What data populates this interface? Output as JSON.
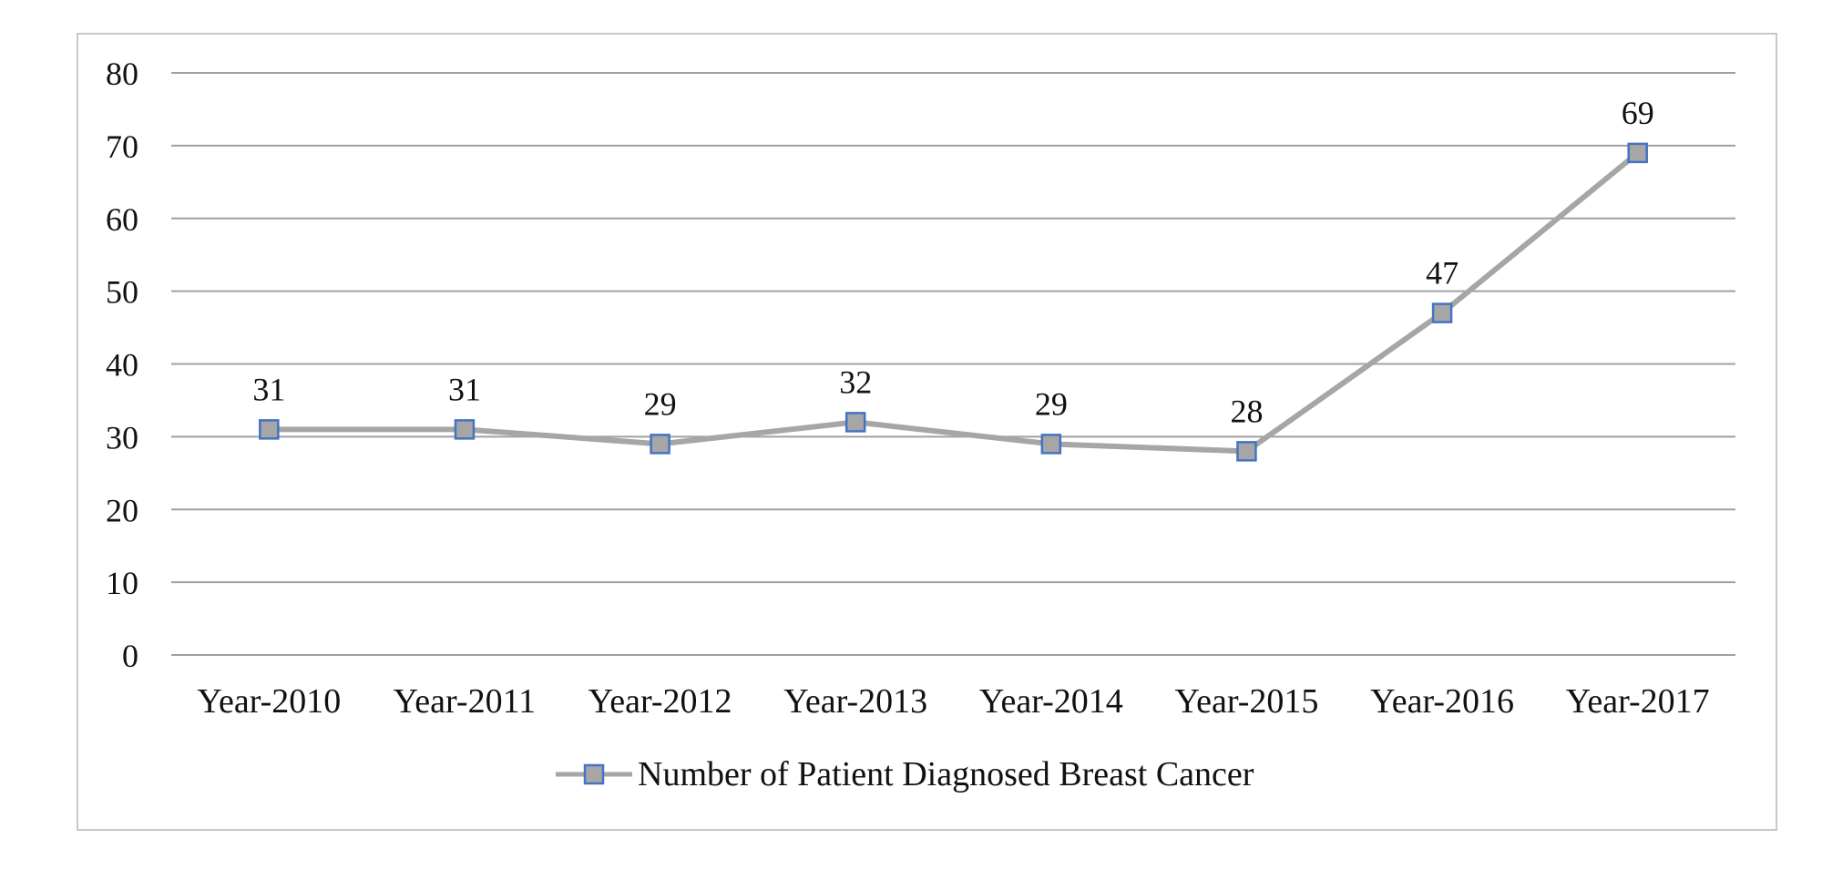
{
  "chart_data": {
    "type": "line",
    "title": "",
    "xlabel": "",
    "ylabel": "",
    "categories": [
      "Year-2010",
      "Year-2011",
      "Year-2012",
      "Year-2013",
      "Year-2014",
      "Year-2015",
      "Year-2016",
      "Year-2017"
    ],
    "series": [
      {
        "name": "Number of Patient Diagnosed Breast Cancer",
        "values": [
          31,
          31,
          29,
          32,
          29,
          28,
          47,
          69
        ]
      }
    ],
    "ylim": [
      0,
      80
    ],
    "yticks": [
      0,
      10,
      20,
      30,
      40,
      50,
      60,
      70,
      80
    ],
    "grid": true,
    "data_labels": true,
    "legend": "bottom-center"
  },
  "colors": {
    "line": "#a6a6a6",
    "marker_fill": "#a6a6a6",
    "marker_stroke": "#4472c4",
    "grid": "#a0a0a0",
    "frame": "#c8c8c8"
  }
}
